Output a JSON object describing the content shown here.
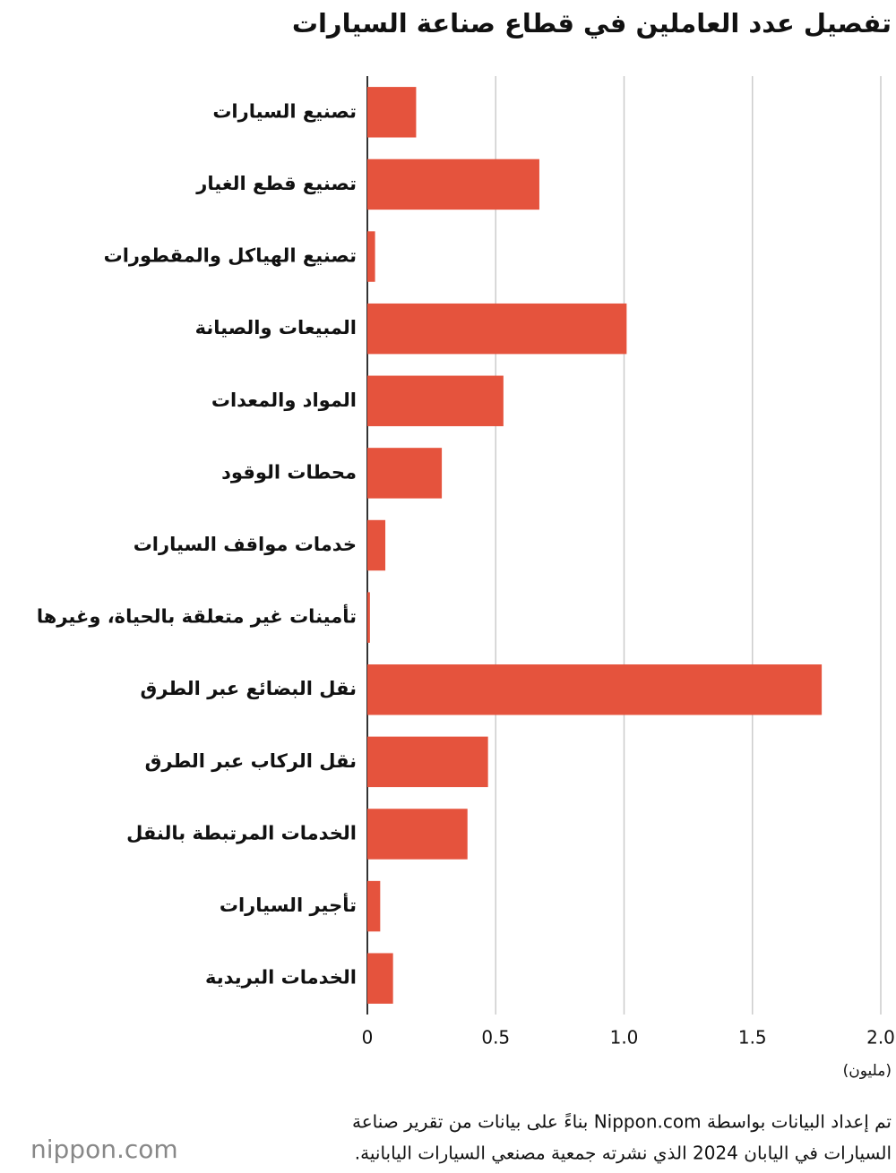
{
  "chart_data": {
    "type": "bar",
    "orientation": "horizontal",
    "title": "تفصيل عدد العاملين في قطاع صناعة السيارات",
    "categories": [
      "تصنيع السيارات",
      "تصنيع قطع الغيار",
      "تصنيع الهياكل والمقطورات",
      "المبيعات والصيانة",
      "المواد والمعدات",
      "محطات الوقود",
      "خدمات مواقف السيارات",
      "تأمينات غير متعلقة بالحياة، وغيرها",
      "نقل البضائع عبر الطرق",
      "نقل الركاب عبر الطرق",
      "الخدمات المرتبطة بالنقل",
      "تأجير السيارات",
      "الخدمات البريدية"
    ],
    "values": [
      0.19,
      0.67,
      0.03,
      1.01,
      0.53,
      0.29,
      0.07,
      0.01,
      1.77,
      0.47,
      0.39,
      0.05,
      0.1
    ],
    "color": "#e5533d",
    "xlim": [
      0,
      2
    ],
    "xticks": [
      0,
      0.5,
      {
        "value": 1,
        "label": "1.0"
      },
      1.5,
      {
        "value": 2,
        "label": "2.0"
      }
    ],
    "x_label": "(مليون)",
    "grid": true,
    "source": [
      "تم إعداد البيانات بواسطة Nippon.com بناءً على بيانات من تقرير صناعة",
      "السيارات في اليابان 2024 الذي نشرته جمعية مصنعي السيارات اليابانية."
    ],
    "logo": "nippon.com"
  }
}
